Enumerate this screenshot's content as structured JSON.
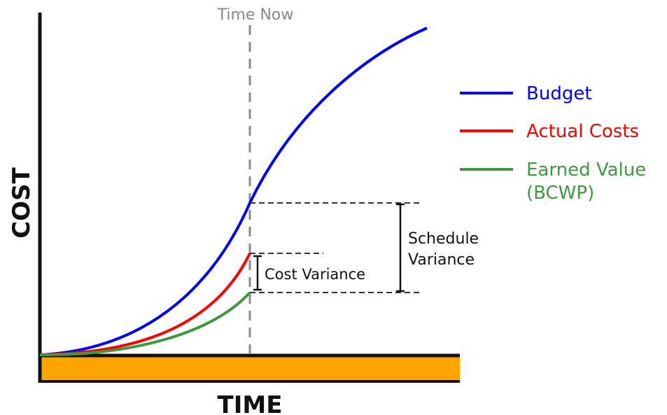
{
  "chart_data": {
    "type": "line",
    "xlabel": "TIME",
    "ylabel": "COST",
    "colors": {
      "budget": "#0000ff",
      "actual": "#ff0000",
      "earned": "#3c9a3c",
      "base_band": "#fea400",
      "axis": "#111111",
      "guide": "#7a7a7a"
    },
    "legend_position": "right",
    "legend": [
      {
        "key": "budget",
        "lines": [
          "Budget"
        ]
      },
      {
        "key": "actual",
        "lines": [
          "Actual Costs"
        ]
      },
      {
        "key": "earned",
        "lines": [
          "Earned Value",
          "(BCWP)"
        ]
      }
    ],
    "annotations": {
      "time_now": "Time Now",
      "cost_variance": "Cost Variance",
      "schedule_variance": [
        "Schedule",
        "Variance"
      ]
    }
  }
}
